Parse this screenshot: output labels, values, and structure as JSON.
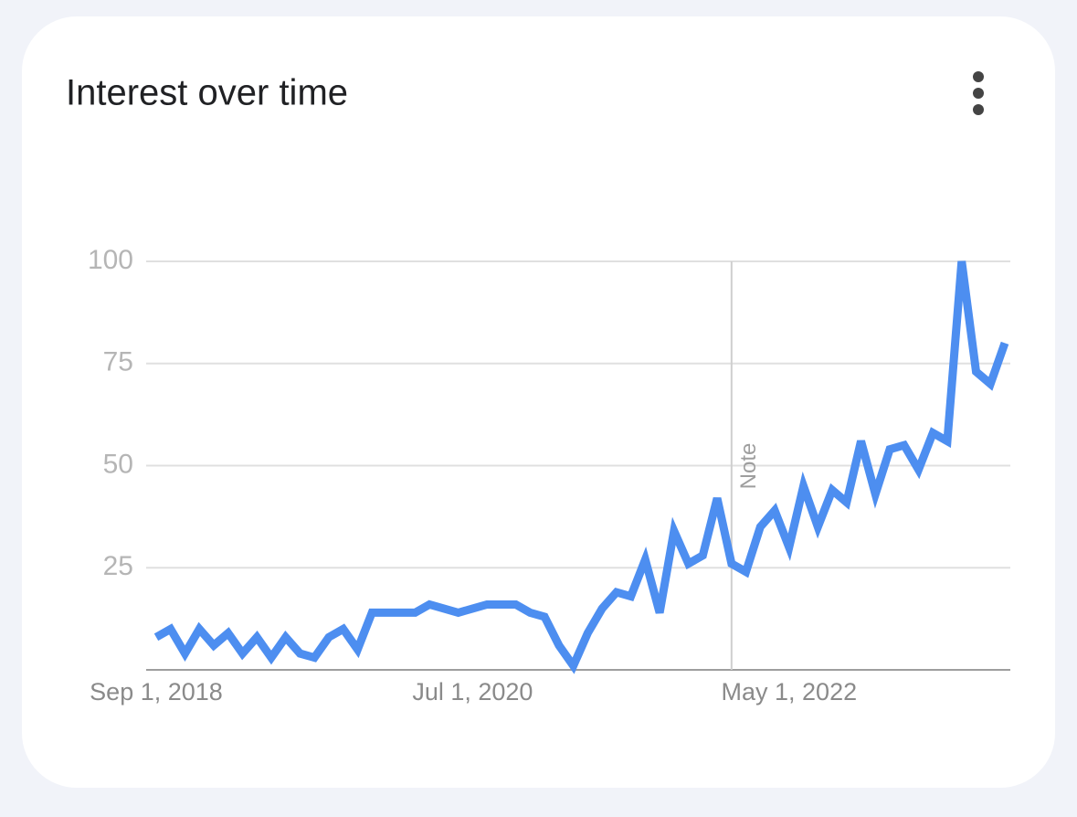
{
  "chart_data": {
    "type": "line",
    "title": "Interest over time",
    "categories": [
      "Sep 1, 2018",
      null,
      null,
      null,
      null,
      null,
      null,
      null,
      null,
      null,
      null,
      null,
      null,
      null,
      null,
      null,
      null,
      null,
      null,
      null,
      null,
      null,
      "Jul 1, 2020",
      null,
      null,
      null,
      null,
      null,
      null,
      null,
      null,
      null,
      null,
      null,
      null,
      null,
      null,
      null,
      null,
      null,
      null,
      null,
      null,
      null,
      "May 1, 2022",
      null,
      null,
      null,
      null,
      null,
      null,
      null,
      null,
      null,
      null,
      null,
      null,
      null,
      null,
      null
    ],
    "values": [
      8,
      10,
      4,
      10,
      6,
      9,
      4,
      8,
      3,
      8,
      4,
      3,
      8,
      10,
      5,
      14,
      14,
      14,
      14,
      16,
      15,
      14,
      15,
      16,
      16,
      16,
      14,
      13,
      6,
      1,
      9,
      15,
      19,
      18,
      27,
      14,
      34,
      26,
      28,
      42,
      26,
      24,
      35,
      39,
      30,
      45,
      35,
      44,
      41,
      56,
      43,
      54,
      55,
      49,
      58,
      56,
      100,
      73,
      70,
      80
    ],
    "color": "#4d8ef0",
    "ylim": [
      0,
      100
    ],
    "yticks": [
      25,
      50,
      75,
      100
    ],
    "grid": true,
    "annotation": "Note"
  }
}
